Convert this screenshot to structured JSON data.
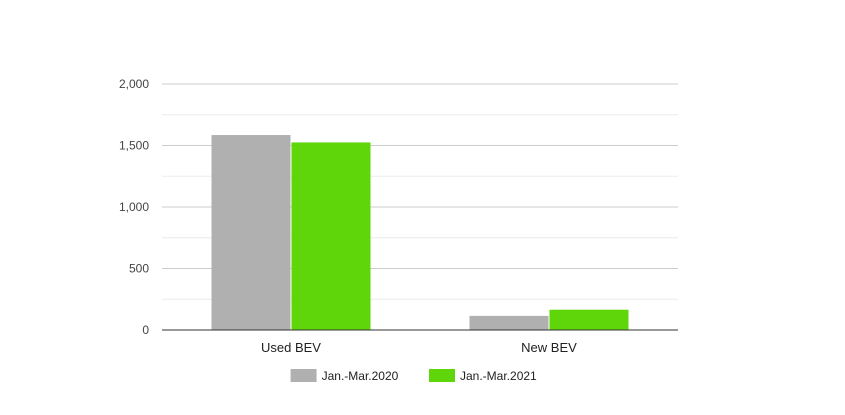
{
  "chart_data": {
    "type": "bar",
    "categories": [
      "Used BEV",
      "New BEV"
    ],
    "series": [
      {
        "name": "Jan.-Mar.2020",
        "values": [
          1585,
          115
        ],
        "color": "#b0b0b0"
      },
      {
        "name": "Jan.-Mar.2021",
        "values": [
          1525,
          165
        ],
        "color": "#5fd60a"
      }
    ],
    "ylim": [
      0,
      2000
    ],
    "yticks": [
      0,
      500,
      1000,
      1500,
      2000
    ],
    "ytick_labels": [
      "0",
      "500",
      "1,000",
      "1,500",
      "2,000"
    ],
    "grid": true,
    "minor_grid": true,
    "legend_position": "bottom",
    "title": "",
    "xlabel": "",
    "ylabel": ""
  }
}
